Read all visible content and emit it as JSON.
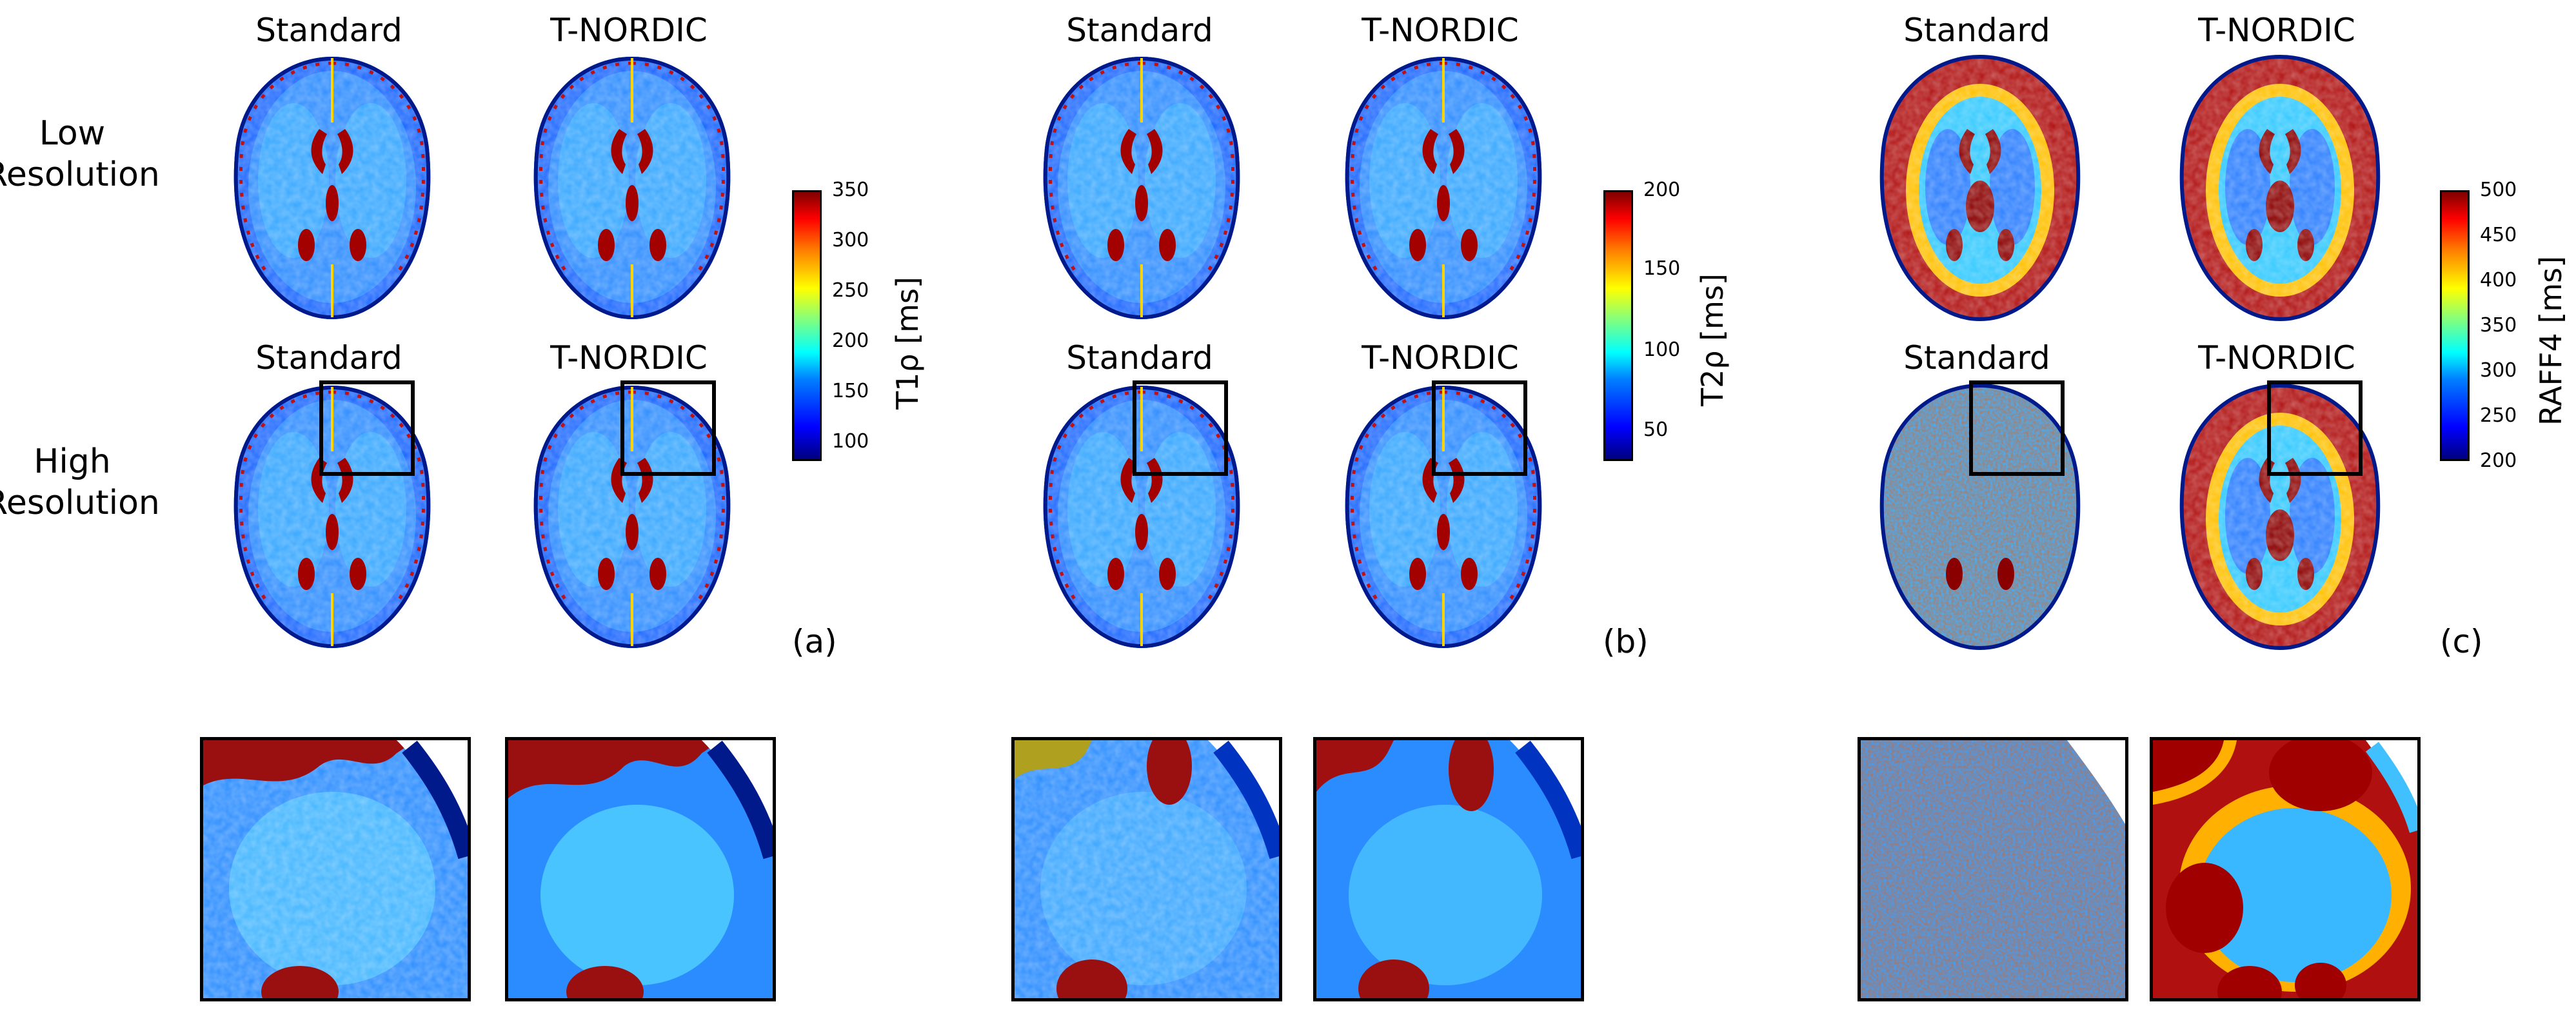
{
  "column_labels": [
    "Standard",
    "T-NORDIC"
  ],
  "row_labels": {
    "low": "Low\nResolution",
    "high": "High\nResolution"
  },
  "panels": [
    {
      "tag": "(a)",
      "colorbar_label": "T1ρ [ms]",
      "ticks": [
        "350",
        "300",
        "250",
        "200",
        "150",
        "100"
      ],
      "tick_values": [
        350,
        300,
        250,
        200,
        150,
        100
      ],
      "range": [
        80,
        350
      ]
    },
    {
      "tag": "(b)",
      "colorbar_label": "T2ρ [ms]",
      "ticks": [
        "200",
        "150",
        "100",
        "50"
      ],
      "tick_values": [
        200,
        150,
        100,
        50
      ],
      "range": [
        30,
        200
      ]
    },
    {
      "tag": "(c)",
      "colorbar_label": "RAFF4 [ms]",
      "ticks": [
        "500",
        "450",
        "400",
        "350",
        "300",
        "250",
        "200"
      ],
      "tick_values": [
        500,
        450,
        400,
        350,
        300,
        250,
        200
      ],
      "range": [
        200,
        500
      ]
    }
  ],
  "colormap": [
    "#00007f",
    "#0000ff",
    "#0080ff",
    "#00ffff",
    "#80ff80",
    "#ffff00",
    "#ff8000",
    "#ff0000",
    "#7f0000"
  ]
}
